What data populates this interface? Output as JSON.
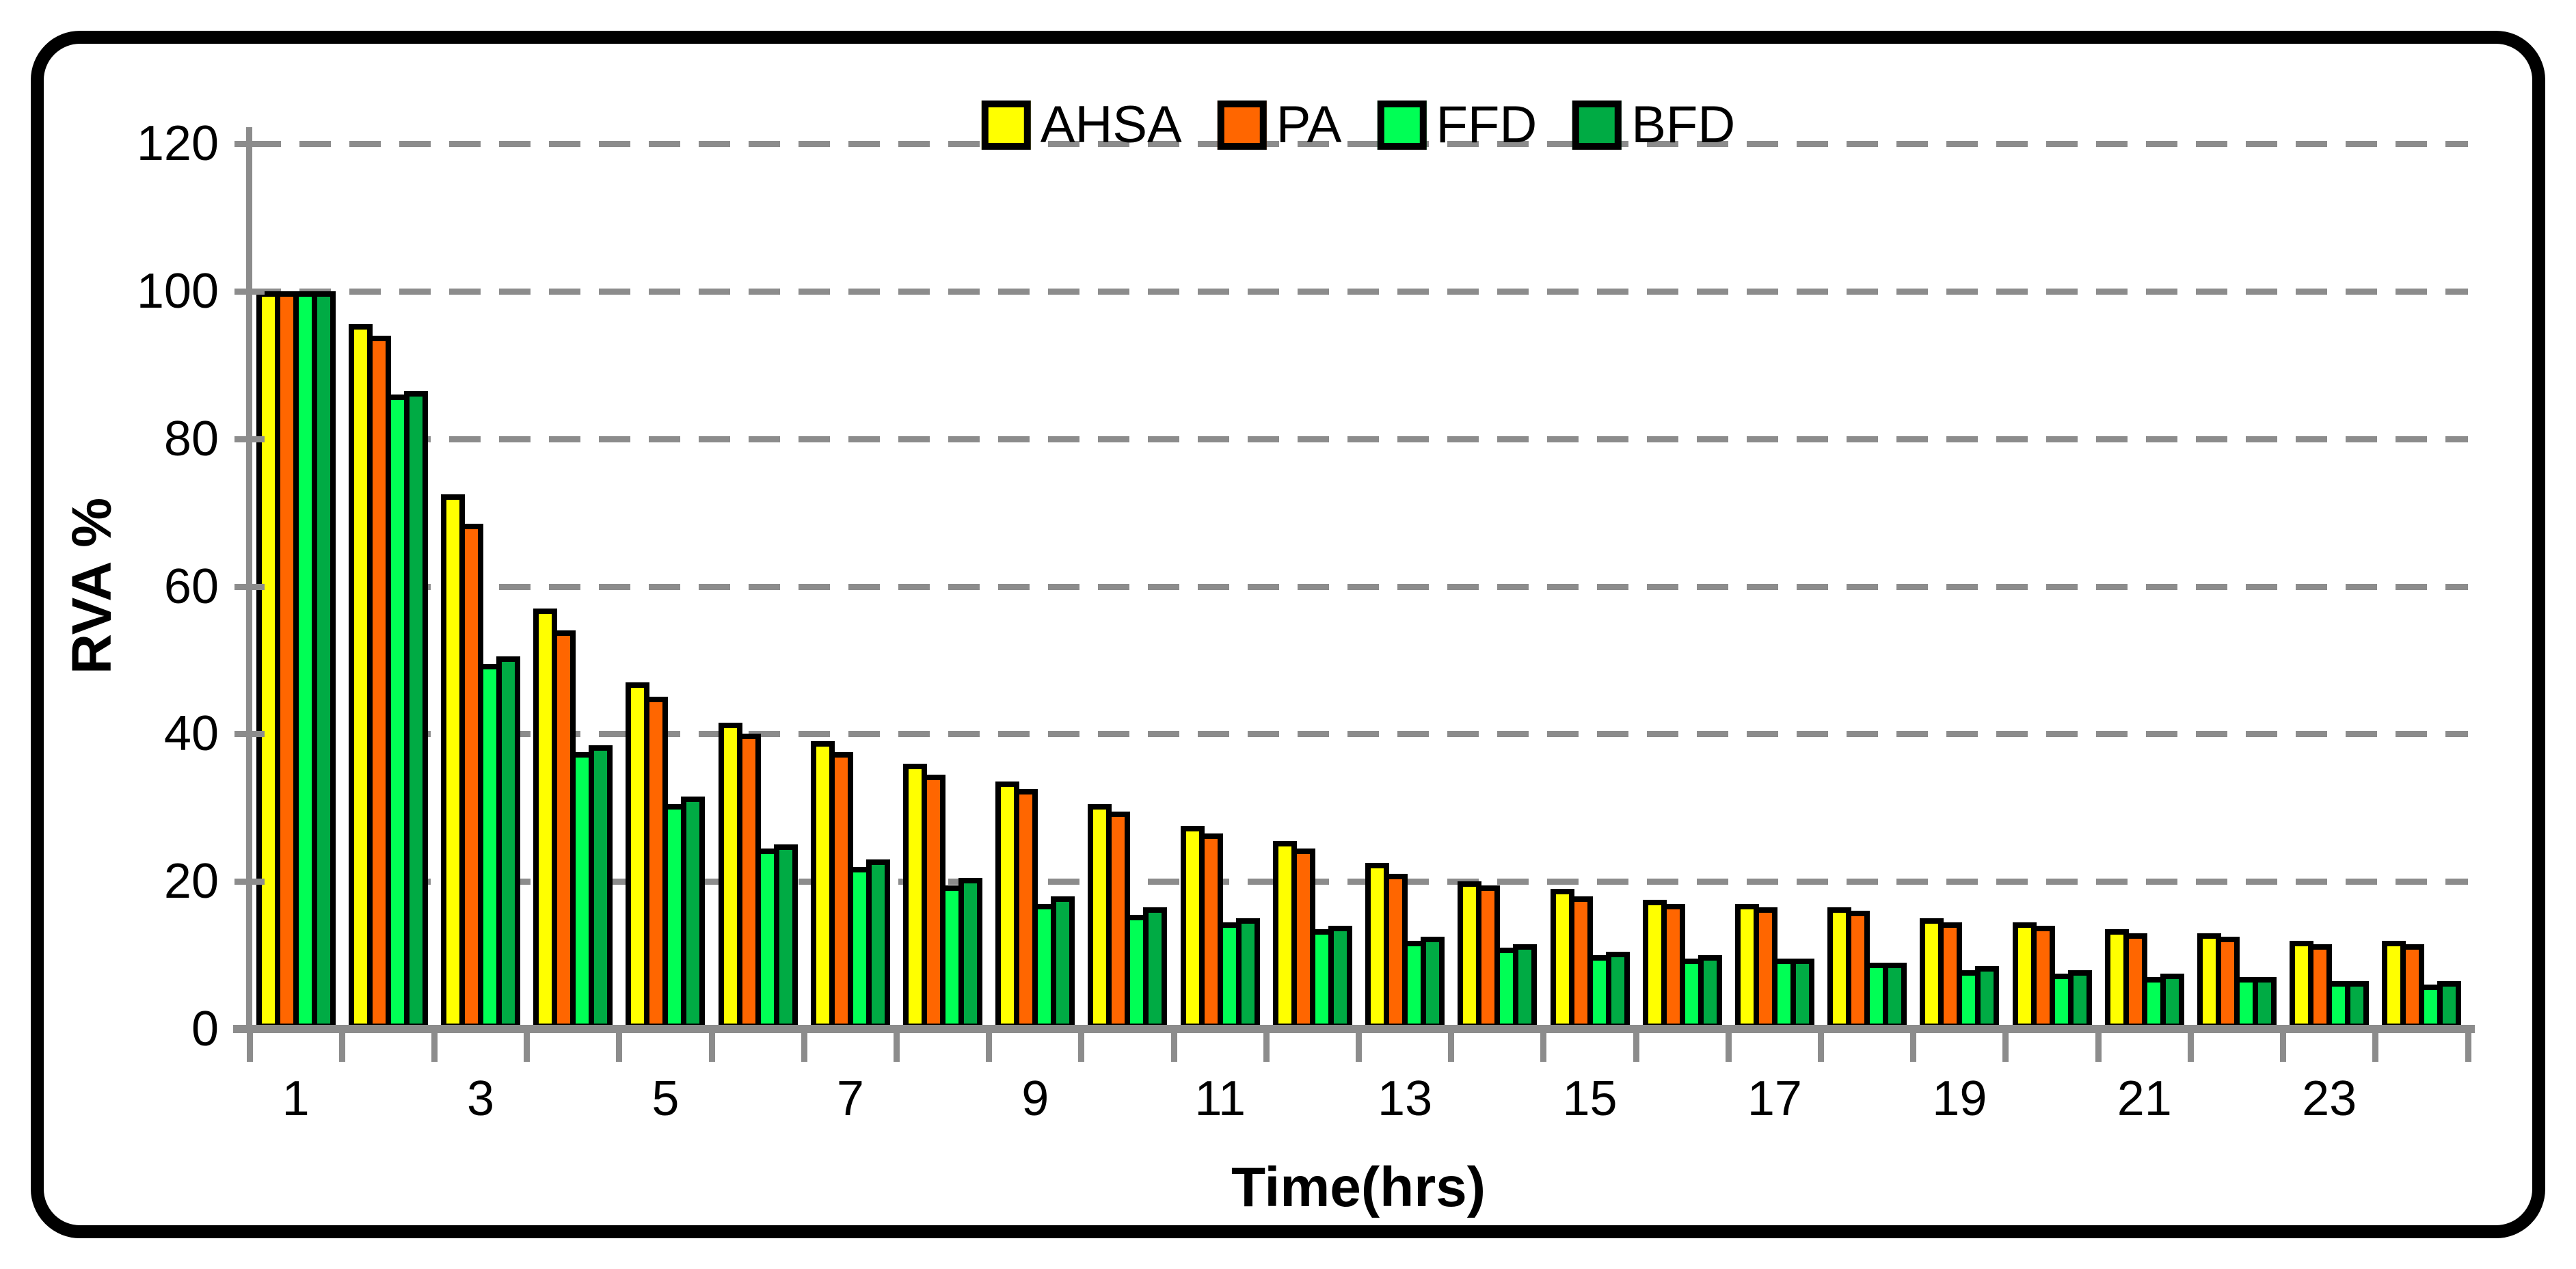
{
  "figure": {
    "background": "#FFFFFF",
    "border_color": "#000000"
  },
  "chart_data": {
    "type": "bar",
    "title": "",
    "xlabel": "Time(hrs)",
    "ylabel": "RVA %",
    "ylim": [
      0,
      120
    ],
    "yticks": [
      0,
      20,
      40,
      60,
      80,
      100,
      120
    ],
    "xtick_labels_shown": [
      "1",
      "3",
      "5",
      "7",
      "9",
      "11",
      "13",
      "15",
      "17",
      "19",
      "21",
      "23"
    ],
    "categories": [
      1,
      2,
      3,
      4,
      5,
      6,
      7,
      8,
      9,
      10,
      11,
      12,
      13,
      14,
      15,
      16,
      17,
      18,
      19,
      20,
      21,
      22,
      23,
      24
    ],
    "grid": "horizontal-dashed",
    "legend_position": "top-center",
    "gridline_color": "#8C8C8C",
    "axis_color": "#8C8C8C",
    "bar_outline_color": "#000000",
    "series": [
      {
        "name": "AHSA",
        "color": "#FFFF00",
        "values": [
          100,
          95.5,
          72.5,
          57,
          47,
          41.5,
          39,
          36,
          33.5,
          30.5,
          27.5,
          25.5,
          22.5,
          20,
          19,
          17.5,
          17,
          16.5,
          15,
          14.5,
          13.5,
          13,
          12,
          12
        ]
      },
      {
        "name": "PA",
        "color": "#FF6600",
        "values": [
          100,
          94,
          68.5,
          54,
          45,
          40,
          37.5,
          34.5,
          32.5,
          29.5,
          26.5,
          24.5,
          21,
          19.5,
          18,
          17,
          16.5,
          16,
          14.5,
          14,
          13,
          12.5,
          11.5,
          11.5
        ]
      },
      {
        "name": "FFD",
        "color": "#00FF55",
        "values": [
          100,
          86,
          49.5,
          37.5,
          30.5,
          24.5,
          22,
          19.5,
          17,
          15.5,
          14.5,
          13.5,
          12,
          11,
          10,
          9.5,
          9.5,
          9,
          8,
          7.5,
          7,
          7,
          6.5,
          6
        ]
      },
      {
        "name": "BFD",
        "color": "#00AB44",
        "values": [
          100,
          86.5,
          50.5,
          38.5,
          31.5,
          25,
          23,
          20.5,
          18,
          16.5,
          15,
          14,
          12.5,
          11.5,
          10.5,
          10,
          9.5,
          9,
          8.5,
          8,
          7.5,
          7,
          6.5,
          6.5
        ]
      }
    ]
  }
}
